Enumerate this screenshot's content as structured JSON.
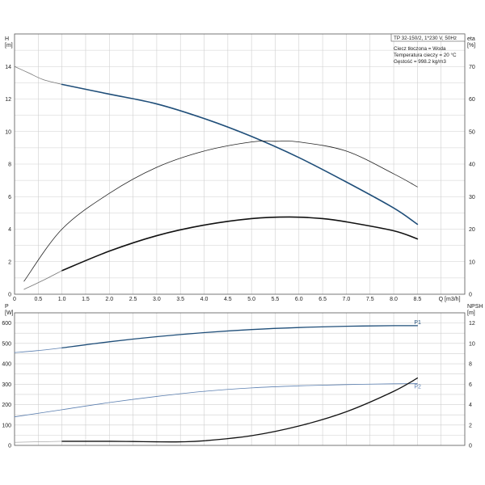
{
  "chart_data": [
    {
      "type": "line",
      "title": "TP 32-150/2, 1*230 V, 50Hz",
      "info": [
        "Ciecz tłoczona = Woda",
        "Temperatura cieczy = 20 °C",
        "Gęstość = 998.2 kg/m3"
      ],
      "xlabel": "Q [m3/h]",
      "ylabel_left": [
        "H",
        "[m]"
      ],
      "ylabel_right": [
        "eta",
        "[%]"
      ],
      "xlim": [
        0,
        9.5
      ],
      "ylim_left": [
        0,
        16
      ],
      "ylim_right": [
        0,
        80
      ],
      "xticks": [
        "0",
        "0.5",
        "1.0",
        "1.5",
        "2.0",
        "2.5",
        "3.0",
        "3.5",
        "4.0",
        "4.5",
        "5.0",
        "5.5",
        "6.0",
        "6.5",
        "7.0",
        "7.5",
        "8.0",
        "8.5",
        "Q [m3/h]"
      ],
      "yticks_left": [
        "0",
        "2",
        "4",
        "6",
        "8",
        "10",
        "12",
        "14"
      ],
      "yticks_right": [
        "0",
        "10",
        "20",
        "30",
        "40",
        "50",
        "60",
        "70"
      ],
      "grid": true,
      "series": [
        {
          "axis": "left",
          "color": "#777777",
          "width": 0.8,
          "x": [
            0,
            0.3,
            0.6,
            1.0
          ],
          "y": [
            14.0,
            13.6,
            13.2,
            12.9
          ]
        },
        {
          "axis": "left",
          "color": "#1f4e79",
          "width": 1.6,
          "x": [
            1.0,
            2.0,
            3.0,
            4.0,
            5.0,
            6.0,
            7.0,
            8.0,
            8.5
          ],
          "y": [
            12.9,
            12.3,
            11.7,
            10.8,
            9.7,
            8.4,
            6.9,
            5.3,
            4.3
          ]
        },
        {
          "axis": "right",
          "color": "#222222",
          "width": 0.8,
          "x": [
            0.2,
            1.0,
            2.0,
            3.0,
            4.0,
            5.0,
            5.5,
            6.0,
            7.0,
            8.0,
            8.5
          ],
          "y": [
            4,
            20,
            31,
            39,
            44,
            46.8,
            47,
            46.8,
            44,
            37,
            33
          ]
        },
        {
          "axis": "left",
          "color": "#111111",
          "width": 1.6,
          "x": [
            1.0,
            2.0,
            3.0,
            4.0,
            5.0,
            5.8,
            6.5,
            7.0,
            8.0,
            8.5
          ],
          "y": [
            1.45,
            2.65,
            3.6,
            4.25,
            4.65,
            4.75,
            4.65,
            4.45,
            3.9,
            3.4
          ]
        },
        {
          "axis": "left",
          "color": "#777777",
          "width": 0.8,
          "x": [
            0.2,
            0.6,
            1.0
          ],
          "y": [
            0.3,
            0.85,
            1.45
          ]
        }
      ]
    },
    {
      "type": "line",
      "xlim": [
        0,
        9.5
      ],
      "ylim_left": [
        0,
        650
      ],
      "ylim_right": [
        0,
        13
      ],
      "ylabel_left": [
        "P",
        "[W]"
      ],
      "ylabel_right": [
        "NPSH",
        "[m]"
      ],
      "yticks_left": [
        "0",
        "100",
        "200",
        "300",
        "400",
        "500",
        "600"
      ],
      "yticks_right": [
        "0",
        "2",
        "4",
        "6",
        "8",
        "10",
        "12"
      ],
      "grid": true,
      "series": [
        {
          "name": "P1",
          "axis": "left",
          "color": "#1f4e79",
          "width": 1.3,
          "x": [
            1.0,
            2.0,
            3.0,
            4.0,
            5.0,
            6.0,
            7.0,
            8.0,
            8.5
          ],
          "y": [
            478,
            508,
            533,
            553,
            568,
            578,
            584,
            587,
            587
          ]
        },
        {
          "axis": "left",
          "color": "#5b7fb0",
          "width": 0.8,
          "x": [
            0,
            0.5,
            1.0
          ],
          "y": [
            455,
            465,
            478
          ]
        },
        {
          "name": "P2",
          "axis": "left",
          "color": "#5b7fb0",
          "width": 0.8,
          "x": [
            0,
            1.0,
            2.0,
            3.0,
            4.0,
            5.0,
            6.0,
            7.0,
            8.0,
            8.5
          ],
          "y": [
            140,
            175,
            210,
            240,
            265,
            282,
            292,
            298,
            302,
            303
          ]
        },
        {
          "axis": "right",
          "color": "#111111",
          "width": 1.3,
          "x": [
            1.0,
            2.0,
            2.5,
            3.0,
            3.5,
            4.0,
            5.0,
            6.0,
            7.0,
            8.0,
            8.5
          ],
          "y": [
            0.4,
            0.4,
            0.38,
            0.35,
            0.35,
            0.45,
            0.95,
            1.9,
            3.3,
            5.3,
            6.6
          ]
        },
        {
          "axis": "right",
          "color": "#999999",
          "width": 0.6,
          "x": [
            0,
            0.5,
            1.0
          ],
          "y": [
            0.3,
            0.35,
            0.4
          ]
        }
      ]
    }
  ]
}
